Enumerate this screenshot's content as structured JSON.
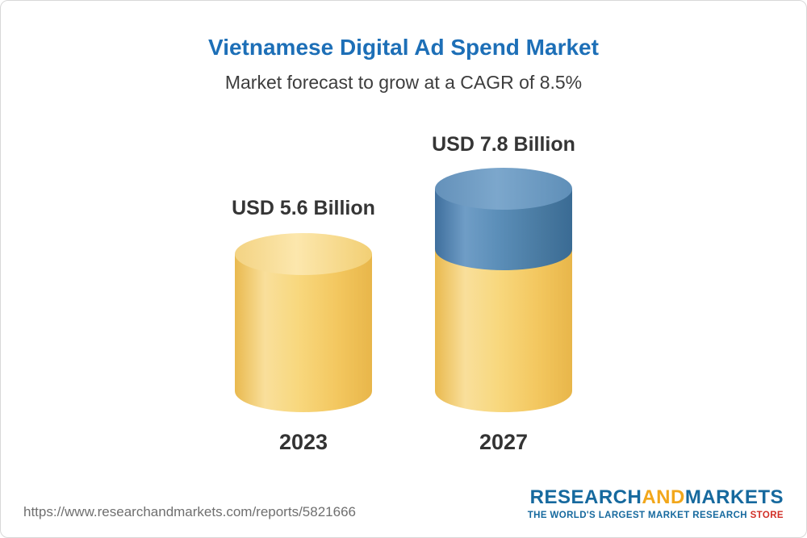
{
  "header": {
    "title": "Vietnamese Digital Ad Spend Market",
    "subtitle": "Market forecast to grow at a CAGR of 8.5%"
  },
  "chart_data": {
    "type": "bar",
    "variant": "3d-cylinder",
    "title": "Vietnamese Digital Ad Spend Market",
    "subtitle": "Market forecast to grow at a CAGR of 8.5%",
    "cagr": "8.5%",
    "unit": "USD Billion",
    "categories": [
      "2023",
      "2027"
    ],
    "values": [
      5.6,
      7.8
    ],
    "bars": [
      {
        "category": "2023",
        "value": 5.6,
        "label": "USD 5.6 Billion",
        "segments": [
          {
            "name": "base",
            "value": 5.6,
            "color": "#f6cf71"
          }
        ]
      },
      {
        "category": "2027",
        "value": 7.8,
        "label": "USD 7.8 Billion",
        "segments": [
          {
            "name": "base",
            "value": 5.6,
            "color": "#f6cf71"
          },
          {
            "name": "growth",
            "value": 2.2,
            "color": "#4a7da8"
          }
        ]
      }
    ],
    "legend": "none",
    "gridlines": false,
    "axes": "none"
  },
  "footer": {
    "url": "https://www.researchandmarkets.com/reports/5821666",
    "logo": {
      "research": "RESEARCH",
      "and": "AND",
      "markets": "MARKETS",
      "tagline_main": "THE WORLD'S LARGEST MARKET RESEARCH ",
      "tagline_store": "STORE"
    }
  },
  "colors": {
    "title_blue": "#1d6fb7",
    "subtitle_gray": "#3d3d3d",
    "yellow_body": "#f6cf71",
    "yellow_cap": "#fbe09c",
    "blue_body": "#4a7da8",
    "blue_cap": "#6d9cc4",
    "label_dark": "#353535",
    "url_gray": "#6f6f6f",
    "logo_blue": "#16699e",
    "logo_gold": "#f2a71b",
    "store_red": "#d12e26"
  }
}
